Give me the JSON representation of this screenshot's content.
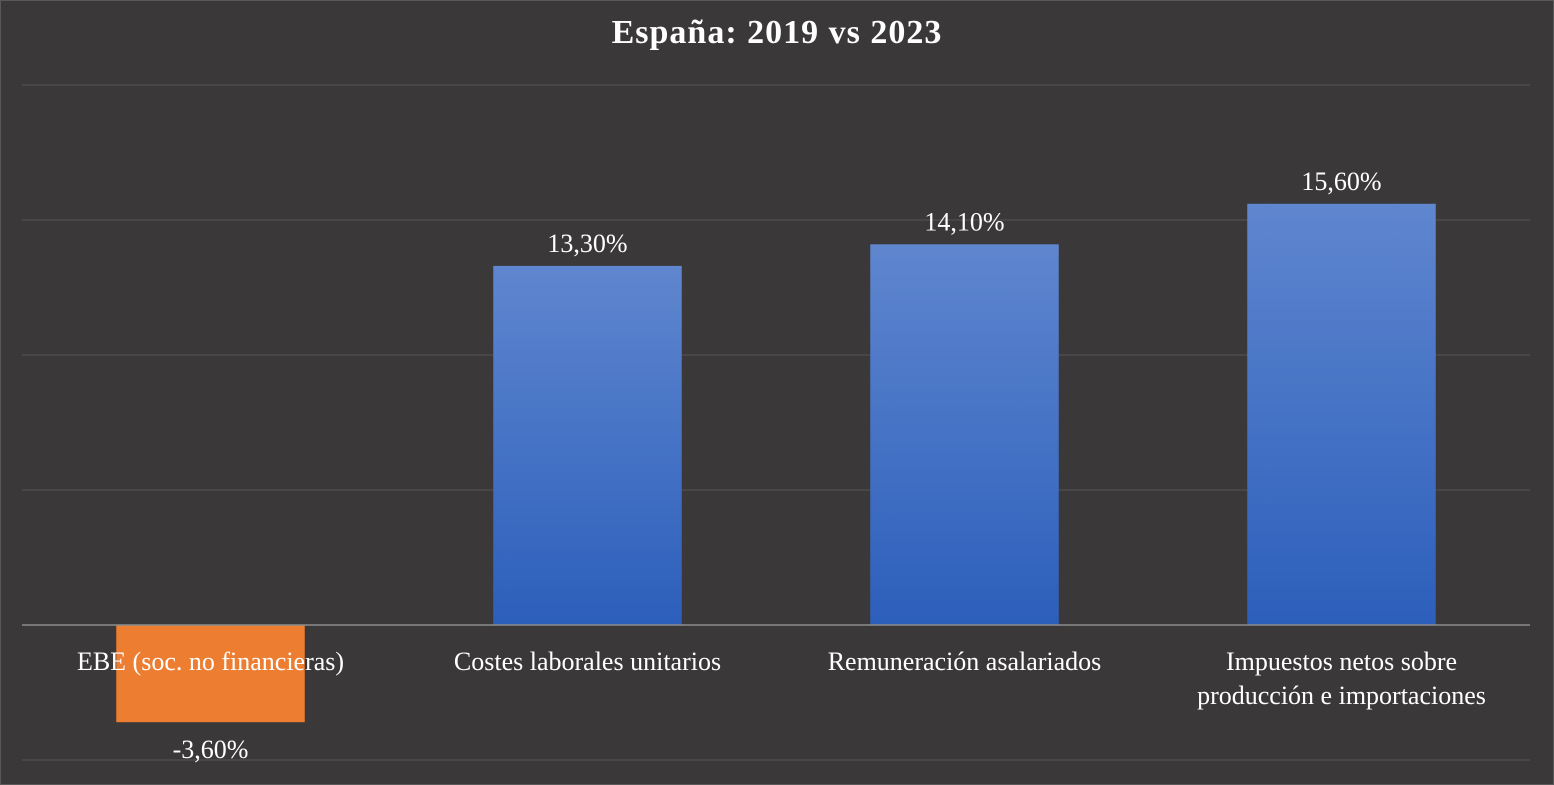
{
  "colors": {
    "background": "#3a3838",
    "positive_top": "#5f86cf",
    "positive_bottom": "#2c5fbb",
    "negative": "#ed7d31",
    "gridline": "#4d4b4b",
    "axis": "#8c8c8c",
    "text": "#ffffff"
  },
  "chart_data": {
    "type": "bar",
    "title": "España: 2019 vs 2023",
    "categories": [
      "EBE (soc. no financieras)",
      "Costes laborales unitarios",
      "Remuneración asalariados",
      "Impuestos netos sobre producción e importaciones"
    ],
    "category_lines": [
      [
        "EBE (soc. no financieras)"
      ],
      [
        "Costes laborales unitarios"
      ],
      [
        "Remuneración asalariados"
      ],
      [
        "Impuestos netos sobre",
        "producción e importaciones"
      ]
    ],
    "values": [
      -3.6,
      13.3,
      14.1,
      15.6
    ],
    "data_labels": [
      "-3,60%",
      "13,30%",
      "14,10%",
      "15,60%"
    ],
    "ylim": [
      -5,
      20
    ],
    "yticks": [
      -5,
      0,
      5,
      10,
      15,
      20
    ],
    "grid": true,
    "legend": "none",
    "xlabel": "",
    "ylabel": ""
  }
}
